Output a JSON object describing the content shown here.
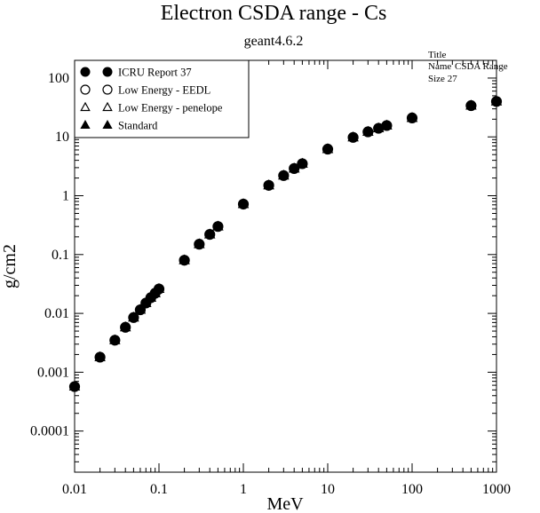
{
  "chart_data": {
    "type": "scatter",
    "title": "Electron CSDA range - Cs",
    "subtitle": "geant4.6.2",
    "xlabel": "MeV",
    "ylabel": "g/cm2",
    "x_scale": "log",
    "y_scale": "log",
    "xlim": [
      0.01,
      1000
    ],
    "ylim": [
      2e-05,
      200
    ],
    "x_ticks": [
      {
        "value": 0.01,
        "label": "0.01"
      },
      {
        "value": 0.1,
        "label": "0.1"
      },
      {
        "value": 1,
        "label": "1"
      },
      {
        "value": 10,
        "label": "10"
      },
      {
        "value": 100,
        "label": "100"
      },
      {
        "value": 1000,
        "label": "1000"
      }
    ],
    "y_ticks": [
      {
        "value": 0.0001,
        "label": "0.0001"
      },
      {
        "value": 0.001,
        "label": "0.001"
      },
      {
        "value": 0.01,
        "label": "0.01"
      },
      {
        "value": 0.1,
        "label": "0.1"
      },
      {
        "value": 1,
        "label": "1"
      },
      {
        "value": 10,
        "label": "10"
      },
      {
        "value": 100,
        "label": "100"
      }
    ],
    "grid": false,
    "legend_position": "top-left",
    "series": [
      {
        "name": "ICRU Report 37",
        "marker": "filled-circle",
        "color": "#000000",
        "x": [
          0.01,
          0.02,
          0.03,
          0.04,
          0.05,
          0.06,
          0.07,
          0.08,
          0.09,
          0.1,
          0.2,
          0.3,
          0.4,
          0.5,
          1,
          2,
          3,
          4,
          5,
          10,
          20,
          30,
          40,
          50,
          100,
          500,
          1000
        ],
        "y": [
          0.00057,
          0.0018,
          0.0035,
          0.0058,
          0.0085,
          0.0115,
          0.015,
          0.0185,
          0.022,
          0.026,
          0.08,
          0.15,
          0.22,
          0.3,
          0.72,
          1.5,
          2.2,
          2.9,
          3.5,
          6.2,
          9.8,
          12.2,
          14.0,
          15.6,
          21.0,
          34.0,
          40.0
        ]
      },
      {
        "name": "Low Energy - EEDL",
        "marker": "open-circle",
        "color": "#000000",
        "x": [
          0.01,
          0.02,
          0.03,
          0.04,
          0.05,
          0.06,
          0.07,
          0.08,
          0.09,
          0.1,
          0.2,
          0.3,
          0.4,
          0.5,
          1,
          2,
          3,
          4,
          5,
          10,
          20,
          30,
          40,
          50,
          100,
          500,
          1000
        ],
        "y": [
          0.00057,
          0.0018,
          0.0035,
          0.0058,
          0.0085,
          0.0115,
          0.015,
          0.0185,
          0.022,
          0.026,
          0.08,
          0.15,
          0.22,
          0.3,
          0.72,
          1.5,
          2.2,
          2.9,
          3.5,
          6.2,
          9.8,
          12.2,
          14.0,
          15.6,
          21.0,
          34.0,
          40.0
        ]
      },
      {
        "name": "Low Energy - penelope",
        "marker": "open-triangle",
        "color": "#000000",
        "x": [
          0.01,
          0.02,
          0.03,
          0.04,
          0.05,
          0.06,
          0.07,
          0.08,
          0.09,
          0.1,
          0.2,
          0.3,
          0.4,
          0.5,
          1,
          2,
          3,
          4,
          5,
          10,
          20,
          30,
          40,
          50,
          100,
          500,
          1000
        ],
        "y": [
          0.00057,
          0.0018,
          0.0035,
          0.0058,
          0.0085,
          0.0115,
          0.015,
          0.0185,
          0.022,
          0.026,
          0.08,
          0.15,
          0.22,
          0.3,
          0.72,
          1.5,
          2.2,
          2.9,
          3.5,
          6.2,
          9.8,
          12.2,
          14.0,
          15.6,
          21.0,
          34.0,
          40.0
        ]
      },
      {
        "name": "Standard",
        "marker": "filled-triangle",
        "color": "#000000",
        "x": [
          0.01,
          0.02,
          0.03,
          0.04,
          0.05,
          0.06,
          0.07,
          0.08,
          0.09,
          0.1,
          0.2,
          0.3,
          0.4,
          0.5,
          1,
          2,
          3,
          4,
          5,
          10,
          20,
          30,
          40,
          50,
          100,
          500,
          1000
        ],
        "y": [
          0.00057,
          0.0018,
          0.0035,
          0.0058,
          0.0085,
          0.0115,
          0.015,
          0.0185,
          0.022,
          0.026,
          0.08,
          0.15,
          0.22,
          0.3,
          0.72,
          1.5,
          2.2,
          2.9,
          3.5,
          6.2,
          9.8,
          12.2,
          14.0,
          15.6,
          21.0,
          34.0,
          40.0
        ]
      }
    ],
    "overlapping_text": {
      "line1": "Title",
      "line2": [
        "Name",
        "CSDA Range"
      ],
      "line3": "Size 27"
    }
  }
}
